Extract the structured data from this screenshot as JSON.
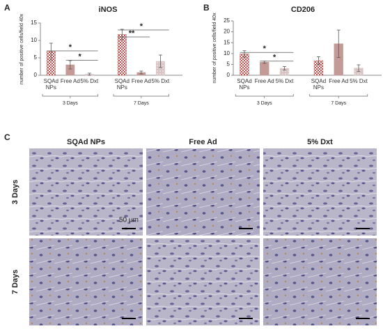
{
  "chart_data": [
    {
      "type": "bar",
      "panel": "A",
      "title": "iNOS",
      "ylabel": "number of positive cells/field 40x",
      "categories": [
        "3 Days",
        "7 Days"
      ],
      "ylim": [
        0,
        15
      ],
      "yticks": [
        0,
        5,
        10,
        15
      ],
      "series": [
        {
          "name": "SQAd NPs",
          "color": "#c0504d",
          "pattern": "checker",
          "values": [
            6.8,
            11.7
          ],
          "errors": [
            2.4,
            1.5
          ]
        },
        {
          "name": "Free Ad",
          "color": "#c49a96",
          "pattern": "solid",
          "values": [
            3.0,
            0.8
          ],
          "errors": [
            1.2,
            0.4
          ]
        },
        {
          "name": "5% Dxt",
          "color": "#d8c4c2",
          "pattern": "dots",
          "values": [
            0.3,
            4.0
          ],
          "errors": [
            0.3,
            1.8
          ]
        }
      ],
      "annotations": [
        {
          "text": "*",
          "level": 7.0
        },
        {
          "text": "*",
          "level": 4.3
        },
        {
          "text": "*",
          "level": 13.0
        },
        {
          "text": "**",
          "level": 11.0
        }
      ]
    },
    {
      "type": "bar",
      "panel": "B",
      "title": "CD206",
      "ylabel": "number of positive cells/field 40x",
      "categories": [
        "3 Days",
        "7 Days"
      ],
      "ylim": [
        0,
        25
      ],
      "yticks": [
        0,
        5,
        10,
        15,
        20,
        25
      ],
      "series": [
        {
          "name": "SQAd NPs",
          "color": "#c0504d",
          "pattern": "checker",
          "values": [
            9.8,
            6.7
          ],
          "errors": [
            1.5,
            1.8
          ]
        },
        {
          "name": "Free Ad",
          "color": "#c49a96",
          "pattern": "solid",
          "values": [
            6.0,
            14.5
          ],
          "errors": [
            0.5,
            6.3
          ]
        },
        {
          "name": "5% Dxt",
          "color": "#d8c4c2",
          "pattern": "dots",
          "values": [
            3.2,
            3.3
          ],
          "errors": [
            0.8,
            1.5
          ]
        }
      ],
      "annotations": [
        {
          "text": "*",
          "level": 10.5
        },
        {
          "text": "*",
          "level": 6.5
        }
      ]
    }
  ],
  "micrographs": {
    "panel": "C",
    "columns": [
      "SQAd NPs",
      "Free Ad",
      "5% Dxt"
    ],
    "rows": [
      "3 Days",
      "7 Days"
    ],
    "scale_label": "50 μm"
  }
}
